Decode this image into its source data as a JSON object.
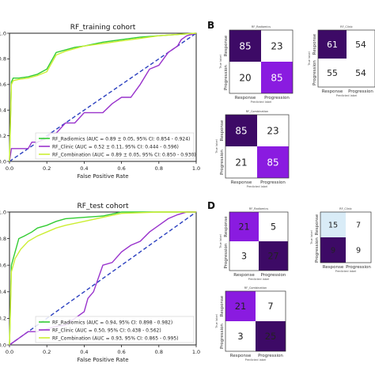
{
  "panel_labels": {
    "b": "B",
    "d": "D"
  },
  "colors": {
    "radiomics": "#33cc33",
    "clinic": "#9933cc",
    "combination": "#ccee33",
    "diagonal": "#2a3fbf",
    "cm_dark": "#3d0a66",
    "cm_purple": "#8a1be0",
    "cm_light": "#d9ecf7",
    "cm_white": "#ffffff"
  },
  "chart_data": [
    {
      "type": "line",
      "title": "RF_training cohort",
      "xlabel": "False Positive Rate",
      "ylabel": "",
      "xlim": [
        0,
        1
      ],
      "ylim": [
        0,
        1
      ],
      "xticks": [
        "0.0",
        "0.2",
        "0.4",
        "0.6",
        "0.8",
        "1.0"
      ],
      "yticks": [
        "0.0",
        "0.2",
        "0.4",
        "0.6",
        "0.8",
        "1.0"
      ],
      "legend_position": "lower-right",
      "series": [
        {
          "name": "RF_Radiomics (AUC = 0.89 ± 0.05, 95% CI: 0.854 - 0.924)",
          "color_key": "radiomics",
          "x": [
            0,
            0.01,
            0.02,
            0.05,
            0.1,
            0.15,
            0.2,
            0.25,
            0.3,
            0.35,
            0.4,
            0.5,
            0.6,
            0.7,
            0.8,
            0.9,
            1.0
          ],
          "y": [
            0,
            0.62,
            0.65,
            0.65,
            0.66,
            0.68,
            0.72,
            0.85,
            0.87,
            0.89,
            0.9,
            0.93,
            0.95,
            0.97,
            0.98,
            0.99,
            1.0
          ]
        },
        {
          "name": "RF_Clinic (AUC = 0.52 ± 0.11, 95% CI: 0.444 - 0.596)",
          "color_key": "clinic",
          "x": [
            0,
            0.01,
            0.02,
            0.05,
            0.1,
            0.12,
            0.15,
            0.2,
            0.22,
            0.25,
            0.3,
            0.35,
            0.4,
            0.5,
            0.55,
            0.6,
            0.65,
            0.7,
            0.75,
            0.8,
            0.85,
            0.9,
            0.92,
            0.95,
            1.0
          ],
          "y": [
            0,
            0.1,
            0.1,
            0.1,
            0.1,
            0.15,
            0.15,
            0.18,
            0.22,
            0.22,
            0.3,
            0.3,
            0.38,
            0.38,
            0.45,
            0.5,
            0.5,
            0.6,
            0.72,
            0.75,
            0.85,
            0.9,
            0.95,
            0.98,
            1.0
          ]
        },
        {
          "name": "RF_Combination (AUC = 0.89 ± 0.05, 95% CI: 0.850 - 0.930)",
          "color_key": "combination",
          "x": [
            0,
            0.01,
            0.02,
            0.05,
            0.1,
            0.15,
            0.2,
            0.25,
            0.3,
            0.35,
            0.4,
            0.5,
            0.6,
            0.7,
            0.8,
            0.9,
            1.0
          ],
          "y": [
            0,
            0.6,
            0.63,
            0.64,
            0.65,
            0.67,
            0.7,
            0.83,
            0.86,
            0.88,
            0.9,
            0.92,
            0.94,
            0.96,
            0.98,
            0.99,
            1.0
          ]
        }
      ]
    },
    {
      "type": "line",
      "title": "RF_test cohort",
      "xlabel": "False Positive Rate",
      "ylabel": "",
      "xlim": [
        0,
        1
      ],
      "ylim": [
        0,
        1
      ],
      "xticks": [
        "0.0",
        "0.2",
        "0.4",
        "0.6",
        "0.8",
        "1.0"
      ],
      "yticks": [
        "0.0",
        "0.2",
        "0.4",
        "0.6",
        "0.8",
        "1.0"
      ],
      "legend_position": "lower-right",
      "series": [
        {
          "name": "RF_Radiomics (AUC = 0.94, 95% CI: 0.898 - 0.982)",
          "color_key": "radiomics",
          "x": [
            0,
            0.01,
            0.03,
            0.05,
            0.08,
            0.12,
            0.15,
            0.2,
            0.25,
            0.3,
            0.4,
            0.5,
            0.6,
            0.8,
            1.0
          ],
          "y": [
            0,
            0.6,
            0.7,
            0.8,
            0.82,
            0.85,
            0.88,
            0.9,
            0.93,
            0.95,
            0.96,
            0.97,
            1.0,
            1.0,
            1.0
          ]
        },
        {
          "name": "RF_Clinic (AUC = 0.50, 95% CI: 0.438 - 0.562)",
          "color_key": "clinic",
          "x": [
            0,
            0.05,
            0.1,
            0.15,
            0.2,
            0.25,
            0.3,
            0.35,
            0.4,
            0.42,
            0.45,
            0.5,
            0.55,
            0.6,
            0.65,
            0.7,
            0.75,
            0.8,
            0.85,
            0.9,
            0.95,
            1.0
          ],
          "y": [
            0,
            0.05,
            0.1,
            0.1,
            0.12,
            0.14,
            0.15,
            0.2,
            0.25,
            0.35,
            0.4,
            0.6,
            0.62,
            0.7,
            0.75,
            0.78,
            0.85,
            0.9,
            0.95,
            0.98,
            1.0,
            1.0
          ]
        },
        {
          "name": "RF_Combination (AUC = 0.93, 95% CI: 0.865 - 0.995)",
          "color_key": "combination",
          "x": [
            0,
            0.01,
            0.03,
            0.06,
            0.1,
            0.15,
            0.2,
            0.25,
            0.3,
            0.4,
            0.5,
            0.6,
            0.8,
            1.0
          ],
          "y": [
            0,
            0.55,
            0.65,
            0.72,
            0.78,
            0.82,
            0.85,
            0.88,
            0.9,
            0.93,
            0.96,
            0.99,
            1.0,
            1.0
          ]
        }
      ]
    },
    {
      "type": "heatmap",
      "title": "RF_Radiomics",
      "xlabel": "Predicted label",
      "ylabel": "True label",
      "row_labels": [
        "Response",
        "Progression"
      ],
      "col_labels": [
        "Response",
        "Progression"
      ],
      "values": [
        [
          85,
          23
        ],
        [
          20,
          85
        ]
      ],
      "cell_colors": [
        [
          "cm_dark",
          "cm_white"
        ],
        [
          "cm_white",
          "cm_purple"
        ]
      ],
      "text_colors": [
        [
          "#ffffff",
          "#222222"
        ],
        [
          "#222222",
          "#ffffff"
        ]
      ]
    },
    {
      "type": "heatmap",
      "title": "RF_Clinic",
      "xlabel": "Predicted label",
      "ylabel": "True label",
      "row_labels": [
        "Response",
        "Progression"
      ],
      "col_labels": [
        "Response",
        "Progression"
      ],
      "values": [
        [
          61,
          54
        ],
        [
          55,
          54
        ]
      ],
      "cell_colors": [
        [
          "cm_dark",
          "cm_white"
        ],
        [
          "cm_white",
          "cm_white"
        ]
      ],
      "text_colors": [
        [
          "#ffffff",
          "#222222"
        ],
        [
          "#222222",
          "#222222"
        ]
      ]
    },
    {
      "type": "heatmap",
      "title": "RF_Combination",
      "xlabel": "Predicted label",
      "ylabel": "True label",
      "row_labels": [
        "Response",
        "Progression"
      ],
      "col_labels": [
        "Response",
        "Progression"
      ],
      "values": [
        [
          85,
          23
        ],
        [
          21,
          85
        ]
      ],
      "cell_colors": [
        [
          "cm_dark",
          "cm_white"
        ],
        [
          "cm_white",
          "cm_purple"
        ]
      ],
      "text_colors": [
        [
          "#ffffff",
          "#222222"
        ],
        [
          "#222222",
          "#ffffff"
        ]
      ]
    },
    {
      "type": "heatmap",
      "title": "RF_Radiomics",
      "xlabel": "Predicted label",
      "ylabel": "True label",
      "row_labels": [
        "Response",
        "Progression"
      ],
      "col_labels": [
        "Response",
        "Progression"
      ],
      "values": [
        [
          21,
          5
        ],
        [
          3,
          27
        ]
      ],
      "cell_colors": [
        [
          "cm_purple",
          "cm_white"
        ],
        [
          "cm_white",
          "cm_dark"
        ]
      ],
      "text_colors": [
        [
          "#222222",
          "#222222"
        ],
        [
          "#222222",
          "#222222"
        ]
      ]
    },
    {
      "type": "heatmap",
      "title": "RF_Clinic",
      "xlabel": "Predicted label",
      "ylabel": "True label",
      "row_labels": [
        "Response",
        "Progression"
      ],
      "col_labels": [
        "Response",
        "Progression"
      ],
      "values": [
        [
          15,
          7
        ],
        [
          9,
          9
        ]
      ],
      "cell_colors": [
        [
          "cm_light",
          "cm_white"
        ],
        [
          "cm_dark",
          "cm_white"
        ]
      ],
      "text_colors": [
        [
          "#222222",
          "#222222"
        ],
        [
          "#222222",
          "#222222"
        ]
      ]
    },
    {
      "type": "heatmap",
      "title": "RF_Combination",
      "xlabel": "Predicted label",
      "ylabel": "True label",
      "row_labels": [
        "Response",
        "Progression"
      ],
      "col_labels": [
        "Response",
        "Progression"
      ],
      "values": [
        [
          21,
          7
        ],
        [
          3,
          25
        ]
      ],
      "cell_colors": [
        [
          "cm_purple",
          "cm_white"
        ],
        [
          "cm_white",
          "cm_dark"
        ]
      ],
      "text_colors": [
        [
          "#222222",
          "#222222"
        ],
        [
          "#222222",
          "#222222"
        ]
      ]
    }
  ]
}
